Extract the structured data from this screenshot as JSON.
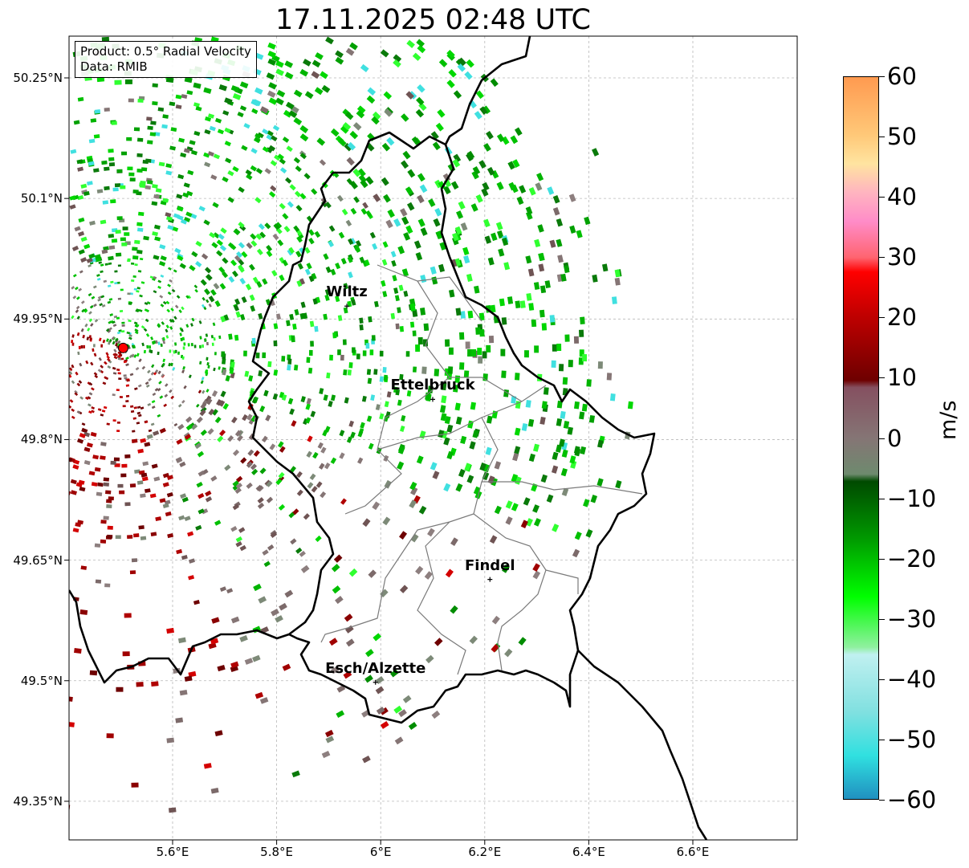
{
  "title": "17.11.2025 02:48 UTC",
  "info_box": {
    "product": "Product: 0.5° Radial Velocity",
    "data": "Data: RMIB"
  },
  "axes": {
    "lat_labels": [
      "50.25°N",
      "50.1°N",
      "49.95°N",
      "49.8°N",
      "49.65°N",
      "49.5°N",
      "49.35°N"
    ],
    "lon_labels": [
      "5.6°E",
      "5.8°E",
      "6°E",
      "6.2°E",
      "6.4°E",
      "6.6°E"
    ]
  },
  "cities": [
    {
      "name": "Wiltz",
      "lon": 5.935,
      "lat": 49.966
    },
    {
      "name": "Ettelbruck",
      "lon": 6.1,
      "lat": 49.85
    },
    {
      "name": "Findel",
      "lon": 6.21,
      "lat": 49.626
    },
    {
      "name": "Esch/Alzette",
      "lon": 5.99,
      "lat": 49.498
    }
  ],
  "radar_site": {
    "lon": 5.505,
    "lat": 49.914
  },
  "colorbar": {
    "unit": "m/s",
    "min": -60,
    "max": 60,
    "tick_labels": [
      "60",
      "50",
      "40",
      "30",
      "20",
      "10",
      "0",
      "−10",
      "−20",
      "−30",
      "−40",
      "−50",
      "−60"
    ]
  },
  "colors": {
    "outbound_dark": "#6e0000",
    "outbound_red": "#d40000",
    "near_zero": "#857575",
    "inbound_green": "#00b400",
    "inbound_light": "#30ff30",
    "inbound_cyan": "#40e0e0",
    "radar_marker": "#ff0000"
  }
}
